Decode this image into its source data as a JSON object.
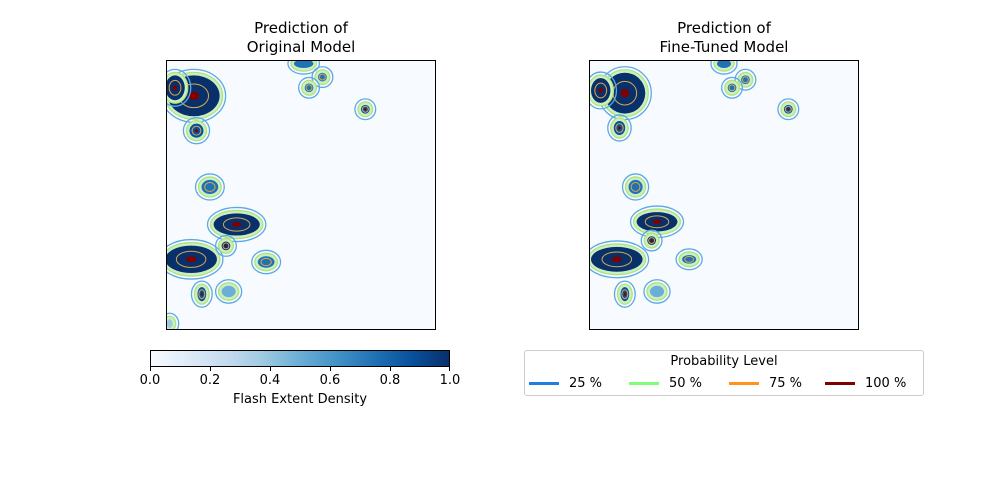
{
  "chart_data": [
    {
      "type": "heatmap",
      "title": "Prediction of\nOriginal Model",
      "title_line1": "Prediction of",
      "title_line2": "Original Model",
      "xticks": "none",
      "yticks": "none",
      "value_range": [
        0,
        1
      ],
      "colormap": "Blues",
      "blobs": [
        {
          "cx": 0.1,
          "cy": 0.13,
          "rx": 0.1,
          "ry": 0.08,
          "value": 1.0
        },
        {
          "cx": 0.03,
          "cy": 0.1,
          "rx": 0.04,
          "ry": 0.05,
          "value": 1.0
        },
        {
          "cx": 0.11,
          "cy": 0.26,
          "rx": 0.03,
          "ry": 0.03,
          "value": 0.9
        },
        {
          "cx": 0.51,
          "cy": 0.01,
          "rx": 0.04,
          "ry": 0.02,
          "value": 0.7
        },
        {
          "cx": 0.58,
          "cy": 0.06,
          "rx": 0.02,
          "ry": 0.02,
          "value": 0.8
        },
        {
          "cx": 0.53,
          "cy": 0.1,
          "rx": 0.02,
          "ry": 0.02,
          "value": 0.8
        },
        {
          "cx": 0.74,
          "cy": 0.18,
          "rx": 0.02,
          "ry": 0.02,
          "value": 0.9
        },
        {
          "cx": 0.16,
          "cy": 0.47,
          "rx": 0.035,
          "ry": 0.03,
          "value": 0.8
        },
        {
          "cx": 0.26,
          "cy": 0.61,
          "rx": 0.09,
          "ry": 0.045,
          "value": 1.0
        },
        {
          "cx": 0.09,
          "cy": 0.74,
          "rx": 0.1,
          "ry": 0.055,
          "value": 1.0
        },
        {
          "cx": 0.22,
          "cy": 0.69,
          "rx": 0.02,
          "ry": 0.02,
          "value": 1.0
        },
        {
          "cx": 0.37,
          "cy": 0.75,
          "rx": 0.035,
          "ry": 0.025,
          "value": 0.8
        },
        {
          "cx": 0.23,
          "cy": 0.86,
          "rx": 0.03,
          "ry": 0.025,
          "value": 0.5
        },
        {
          "cx": 0.13,
          "cy": 0.87,
          "rx": 0.02,
          "ry": 0.03,
          "value": 0.9
        },
        {
          "cx": 0.01,
          "cy": 0.98,
          "rx": 0.015,
          "ry": 0.02,
          "value": 0.4
        }
      ]
    },
    {
      "type": "heatmap",
      "title": "Prediction of\nFine-Tuned Model",
      "title_line1": "Prediction of",
      "title_line2": "Fine-Tuned Model",
      "xticks": "none",
      "yticks": "none",
      "value_range": [
        0,
        1
      ],
      "colormap": "Blues",
      "blobs": [
        {
          "cx": 0.13,
          "cy": 0.12,
          "rx": 0.08,
          "ry": 0.08,
          "value": 1.0
        },
        {
          "cx": 0.04,
          "cy": 0.11,
          "rx": 0.04,
          "ry": 0.05,
          "value": 1.0
        },
        {
          "cx": 0.11,
          "cy": 0.25,
          "rx": 0.025,
          "ry": 0.03,
          "value": 0.9
        },
        {
          "cx": 0.5,
          "cy": 0.01,
          "rx": 0.03,
          "ry": 0.02,
          "value": 0.7
        },
        {
          "cx": 0.58,
          "cy": 0.07,
          "rx": 0.02,
          "ry": 0.02,
          "value": 0.8
        },
        {
          "cx": 0.53,
          "cy": 0.1,
          "rx": 0.02,
          "ry": 0.02,
          "value": 0.8
        },
        {
          "cx": 0.74,
          "cy": 0.18,
          "rx": 0.02,
          "ry": 0.02,
          "value": 0.9
        },
        {
          "cx": 0.17,
          "cy": 0.47,
          "rx": 0.03,
          "ry": 0.03,
          "value": 0.8
        },
        {
          "cx": 0.25,
          "cy": 0.6,
          "rx": 0.08,
          "ry": 0.04,
          "value": 1.0
        },
        {
          "cx": 0.1,
          "cy": 0.74,
          "rx": 0.1,
          "ry": 0.05,
          "value": 1.0
        },
        {
          "cx": 0.23,
          "cy": 0.67,
          "rx": 0.02,
          "ry": 0.02,
          "value": 1.0
        },
        {
          "cx": 0.37,
          "cy": 0.74,
          "rx": 0.03,
          "ry": 0.02,
          "value": 0.8
        },
        {
          "cx": 0.25,
          "cy": 0.86,
          "rx": 0.03,
          "ry": 0.025,
          "value": 0.5
        },
        {
          "cx": 0.13,
          "cy": 0.87,
          "rx": 0.02,
          "ry": 0.03,
          "value": 0.9
        }
      ]
    }
  ],
  "colorbar": {
    "label": "Flash Extent Density",
    "ticks": [
      "0.0",
      "0.2",
      "0.4",
      "0.6",
      "0.8",
      "1.0"
    ],
    "range": [
      0,
      1
    ]
  },
  "legend": {
    "title": "Probability Level",
    "items": [
      {
        "label": "25 %",
        "color": "#1f7fe0"
      },
      {
        "label": "50 %",
        "color": "#7dff7a"
      },
      {
        "label": "75 %",
        "color": "#ff9416"
      },
      {
        "label": "100 %",
        "color": "#800000"
      }
    ]
  }
}
